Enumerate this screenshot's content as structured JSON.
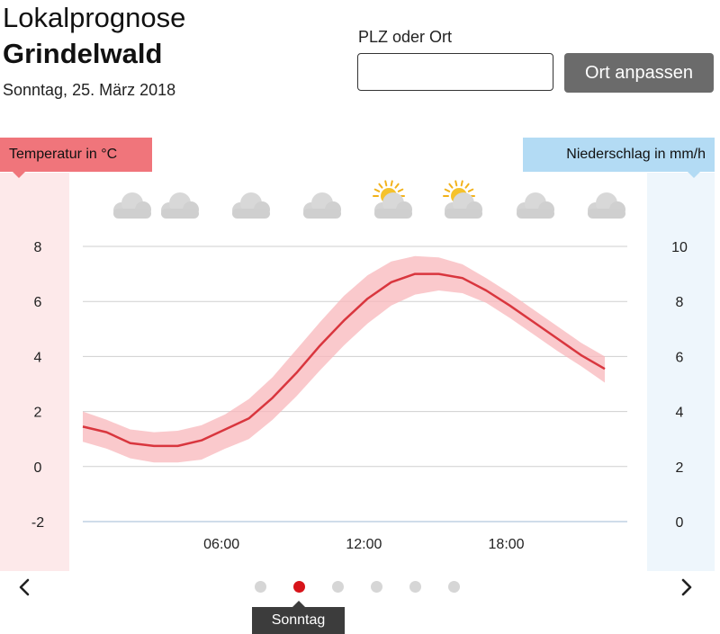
{
  "header": {
    "subtitle": "Lokalprognose",
    "location": "Grindelwald",
    "date": "Sonntag, 25. März 2018"
  },
  "search": {
    "label": "PLZ oder Ort",
    "value": "",
    "placeholder": "",
    "button_label": "Ort anpassen"
  },
  "legend": {
    "temperature": "Temperatur in °C",
    "precipitation": "Niederschlag in mm/h"
  },
  "colors": {
    "temp_line": "#d9363e",
    "temp_band": "#f8b7bb",
    "active_dot": "#d7141a"
  },
  "weather_icons": [
    "cloud-icon",
    "cloud-icon",
    "cloud-icon",
    "cloud-icon",
    "sun-cloud-icon",
    "sun-cloud-icon",
    "cloud-icon",
    "cloud-icon"
  ],
  "chart_data": {
    "type": "line",
    "x": [
      0,
      1,
      2,
      3,
      4,
      5,
      6,
      7,
      8,
      9,
      10,
      11,
      12,
      13,
      14,
      15,
      16,
      17,
      18,
      19,
      20,
      21,
      22
    ],
    "xlabel": "",
    "x_tick_labels": [
      "06:00",
      "12:00",
      "18:00"
    ],
    "x_tick_values": [
      6,
      12,
      18
    ],
    "xlim": [
      0,
      22
    ],
    "ylabel": "Temperatur in °C",
    "ylim": [
      -2,
      8
    ],
    "y_ticks": [
      -2,
      0,
      2,
      4,
      6,
      8
    ],
    "y2label": "Niederschlag in mm/h",
    "y2lim": [
      0,
      10
    ],
    "y2_ticks": [
      0,
      2,
      4,
      6,
      8,
      10
    ],
    "series": [
      {
        "name": "Temperatur in °C",
        "values": [
          1.45,
          1.25,
          0.85,
          0.75,
          0.75,
          0.95,
          1.35,
          1.75,
          2.5,
          3.4,
          4.4,
          5.3,
          6.1,
          6.7,
          7.0,
          7.0,
          6.85,
          6.4,
          5.85,
          5.25,
          4.65,
          4.05,
          3.55
        ]
      },
      {
        "name": "",
        "values": [
          2.0,
          1.7,
          1.35,
          1.25,
          1.3,
          1.5,
          1.9,
          2.45,
          3.25,
          4.25,
          5.25,
          6.2,
          6.95,
          7.45,
          7.65,
          7.6,
          7.35,
          6.85,
          6.3,
          5.7,
          5.1,
          4.5,
          4.0
        ]
      },
      {
        "name": "",
        "values": [
          0.9,
          0.65,
          0.3,
          0.15,
          0.15,
          0.25,
          0.65,
          1.0,
          1.7,
          2.55,
          3.5,
          4.4,
          5.2,
          5.85,
          6.25,
          6.4,
          6.3,
          5.95,
          5.4,
          4.8,
          4.2,
          3.65,
          3.05
        ]
      }
    ],
    "grid": true
  },
  "slider": {
    "dot_count": 6,
    "active_index": 1,
    "day_label": "Sonntag"
  }
}
